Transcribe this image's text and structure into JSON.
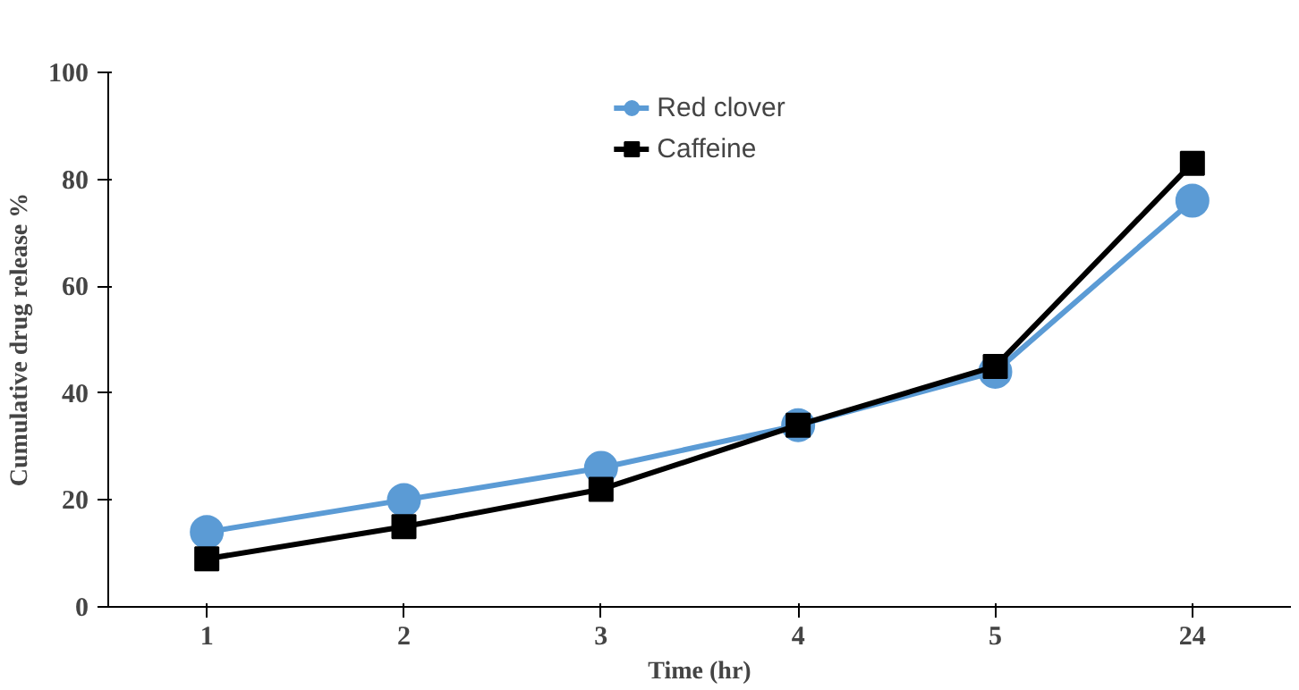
{
  "chart_data": {
    "type": "line",
    "xlabel": "Time (hr)",
    "ylabel": "Cumulative drug release %",
    "categories": [
      "1",
      "2",
      "3",
      "4",
      "5",
      "24"
    ],
    "series": [
      {
        "name": "Red clover",
        "color": "#5b9bd5",
        "marker": "circle",
        "values": [
          14,
          20,
          26,
          34,
          44,
          76
        ]
      },
      {
        "name": "Caffeine",
        "color": "#000000",
        "marker": "square",
        "values": [
          9,
          15,
          22,
          34,
          45,
          83
        ]
      }
    ],
    "ylim": [
      0,
      100
    ],
    "yticks": [
      0,
      20,
      40,
      60,
      80,
      100
    ],
    "grid": false,
    "legend": "top"
  }
}
